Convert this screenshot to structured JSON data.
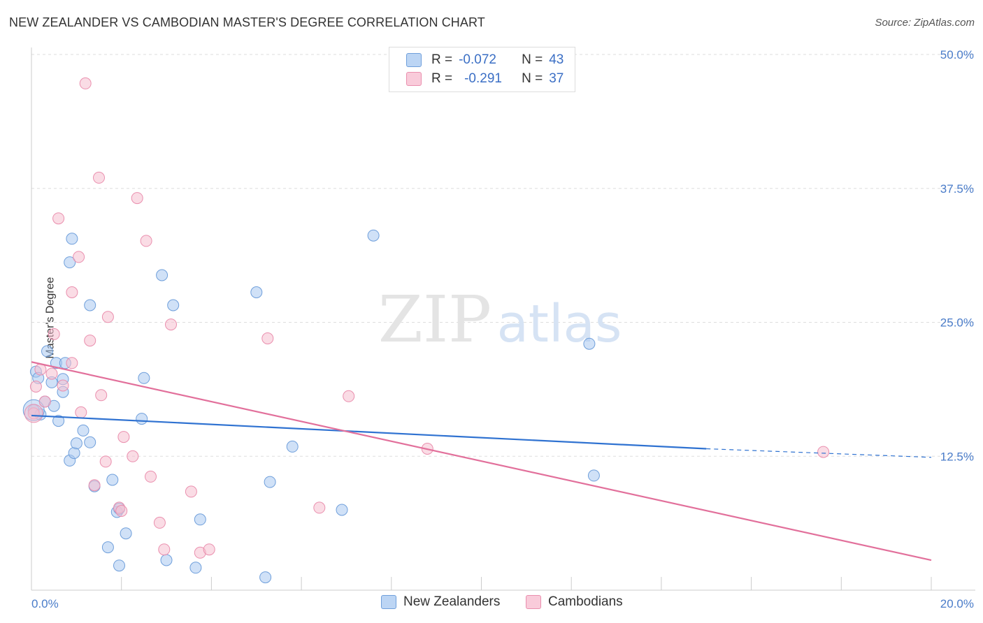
{
  "title": "NEW ZEALANDER VS CAMBODIAN MASTER'S DEGREE CORRELATION CHART",
  "source": "Source: ZipAtlas.com",
  "legend": {
    "rows": [
      {
        "r_label": "R =",
        "r_value": "-0.072",
        "n_label": "N =",
        "n_value": "43"
      },
      {
        "r_label": "R =",
        "r_value": "-0.291",
        "n_label": "N =",
        "n_value": "37"
      }
    ]
  },
  "watermark": {
    "zip": "ZIP",
    "atlas": "atlas"
  },
  "colors": {
    "blue_fill": "#a9c8f0",
    "blue_stroke": "#6f9fdb",
    "blue_line": "#2f72d1",
    "pink_fill": "#f6bfd0",
    "pink_stroke": "#ea8fae",
    "pink_line": "#e2709b",
    "tick_text": "#4a7cc9",
    "grid": "#dddddd"
  },
  "chart_data": {
    "type": "scatter",
    "title": "NEW ZEALANDER VS CAMBODIAN MASTER'S DEGREE CORRELATION CHART",
    "xlabel": "",
    "ylabel": "Master's Degree",
    "xlim": [
      0,
      20
    ],
    "ylim": [
      0,
      50
    ],
    "x_tick_labels": [
      "0.0%",
      "20.0%"
    ],
    "y_ticks": [
      12.5,
      25.0,
      37.5,
      50.0
    ],
    "y_tick_labels": [
      "12.5%",
      "25.0%",
      "37.5%",
      "50.0%"
    ],
    "series": [
      {
        "name": "New Zealanders",
        "color": "#a9c8f0",
        "r": -0.072,
        "n": 43,
        "trend": {
          "x": [
            0,
            15.0
          ],
          "y": [
            16.3,
            13.2
          ],
          "dashed_to": [
            20,
            12.4
          ]
        },
        "points": [
          [
            0.05,
            16.8
          ],
          [
            0.1,
            20.4
          ],
          [
            0.15,
            19.8
          ],
          [
            0.2,
            16.4
          ],
          [
            0.3,
            17.6
          ],
          [
            0.35,
            22.3
          ],
          [
            0.45,
            19.4
          ],
          [
            0.5,
            17.2
          ],
          [
            0.55,
            21.2
          ],
          [
            0.6,
            15.8
          ],
          [
            0.7,
            18.5
          ],
          [
            0.7,
            19.7
          ],
          [
            0.75,
            21.2
          ],
          [
            0.85,
            30.6
          ],
          [
            0.85,
            12.1
          ],
          [
            0.9,
            32.8
          ],
          [
            0.95,
            12.8
          ],
          [
            1.0,
            13.7
          ],
          [
            1.15,
            14.9
          ],
          [
            1.3,
            26.6
          ],
          [
            1.3,
            13.8
          ],
          [
            1.4,
            9.7
          ],
          [
            1.8,
            10.3
          ],
          [
            1.9,
            7.3
          ],
          [
            1.95,
            7.6
          ],
          [
            2.1,
            5.3
          ],
          [
            1.7,
            4.0
          ],
          [
            1.95,
            2.3
          ],
          [
            2.45,
            16.0
          ],
          [
            2.5,
            19.8
          ],
          [
            2.9,
            29.4
          ],
          [
            3.0,
            2.8
          ],
          [
            3.15,
            26.6
          ],
          [
            3.75,
            6.6
          ],
          [
            3.65,
            2.1
          ],
          [
            5.0,
            27.8
          ],
          [
            5.2,
            1.2
          ],
          [
            5.3,
            10.1
          ],
          [
            5.8,
            13.4
          ],
          [
            6.9,
            7.5
          ],
          [
            7.6,
            33.1
          ],
          [
            12.4,
            23.0
          ],
          [
            12.5,
            10.7
          ]
        ]
      },
      {
        "name": "Cambodians",
        "color": "#f6bfd0",
        "r": -0.291,
        "n": 37,
        "trend": {
          "x": [
            0,
            20
          ],
          "y": [
            21.3,
            2.8
          ]
        },
        "points": [
          [
            0.05,
            16.5
          ],
          [
            0.1,
            19.0
          ],
          [
            0.2,
            20.6
          ],
          [
            0.3,
            17.6
          ],
          [
            0.45,
            20.2
          ],
          [
            0.5,
            23.9
          ],
          [
            0.6,
            34.7
          ],
          [
            0.7,
            19.1
          ],
          [
            0.9,
            21.2
          ],
          [
            0.9,
            27.8
          ],
          [
            1.05,
            31.1
          ],
          [
            1.1,
            16.6
          ],
          [
            1.2,
            47.3
          ],
          [
            1.3,
            23.3
          ],
          [
            1.4,
            9.8
          ],
          [
            1.5,
            38.5
          ],
          [
            1.55,
            18.2
          ],
          [
            1.65,
            12.0
          ],
          [
            1.7,
            25.5
          ],
          [
            1.95,
            7.7
          ],
          [
            2.0,
            7.4
          ],
          [
            2.05,
            14.3
          ],
          [
            2.25,
            12.5
          ],
          [
            2.35,
            36.6
          ],
          [
            2.55,
            32.6
          ],
          [
            2.65,
            10.6
          ],
          [
            2.85,
            6.3
          ],
          [
            2.95,
            3.8
          ],
          [
            3.1,
            24.8
          ],
          [
            3.55,
            9.2
          ],
          [
            3.75,
            3.5
          ],
          [
            3.95,
            3.8
          ],
          [
            5.25,
            23.5
          ],
          [
            6.4,
            7.7
          ],
          [
            7.05,
            18.1
          ],
          [
            8.8,
            13.2
          ],
          [
            17.6,
            12.9
          ]
        ]
      }
    ]
  }
}
